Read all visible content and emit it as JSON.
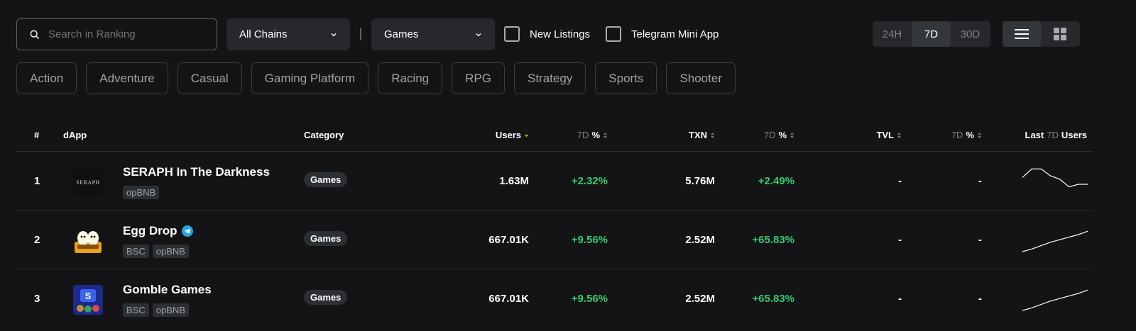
{
  "search": {
    "placeholder": "Search in Ranking"
  },
  "filters": {
    "chain_select": "All Chains",
    "category_select": "Games",
    "new_listings": "New Listings",
    "telegram_mini_app": "Telegram Mini App"
  },
  "time_ranges": [
    {
      "label": "24H",
      "active": false
    },
    {
      "label": "7D",
      "active": true
    },
    {
      "label": "30D",
      "active": false
    }
  ],
  "view_modes": [
    {
      "name": "list-view",
      "active": true
    },
    {
      "name": "grid-view",
      "active": false
    }
  ],
  "tags": [
    "Action",
    "Adventure",
    "Casual",
    "Gaming Platform",
    "Racing",
    "RPG",
    "Strategy",
    "Sports",
    "Shooter"
  ],
  "table": {
    "headers": {
      "rank": "#",
      "dapp": "dApp",
      "category": "Category",
      "users": "Users",
      "users_pct_period": "7D",
      "users_pct_sym": "%",
      "txn": "TXN",
      "txn_pct_period": "7D",
      "txn_pct_sym": "%",
      "tvl": "TVL",
      "tvl_pct_period": "7D",
      "tvl_pct_sym": "%",
      "last_prefix": "Last",
      "last_period": "7D",
      "last_suffix": "Users"
    },
    "rows": [
      {
        "rank": "1",
        "logo_text": "SERAPH",
        "name": "SERAPH In The Darkness",
        "chains": [
          "opBNB"
        ],
        "category": "Games",
        "users": "1.63M",
        "users_pct": "+2.32%",
        "txn": "5.76M",
        "txn_pct": "+2.49%",
        "tvl": "-",
        "tvl_pct": "-",
        "spark": [
          28,
          38,
          38,
          30,
          26,
          17,
          20,
          20
        ]
      },
      {
        "rank": "2",
        "name": "Egg Drop",
        "telegram": true,
        "chains": [
          "BSC",
          "opBNB"
        ],
        "category": "Games",
        "users": "667.01K",
        "users_pct": "+9.56%",
        "txn": "2.52M",
        "txn_pct": "+65.83%",
        "tvl": "-",
        "tvl_pct": "-",
        "spark": [
          10,
          13,
          17,
          21,
          24,
          27,
          30,
          34
        ]
      },
      {
        "rank": "3",
        "name": "Gomble Games",
        "chains": [
          "BSC",
          "opBNB"
        ],
        "category": "Games",
        "users": "667.01K",
        "users_pct": "+9.56%",
        "txn": "2.52M",
        "txn_pct": "+65.83%",
        "tvl": "-",
        "tvl_pct": "-",
        "spark": [
          10,
          13,
          17,
          21,
          24,
          27,
          30,
          34
        ]
      }
    ]
  },
  "colors": {
    "background": "#141416",
    "positive": "#2ecc71",
    "sort_active": "#f0b90b",
    "panel": "#26282c"
  }
}
